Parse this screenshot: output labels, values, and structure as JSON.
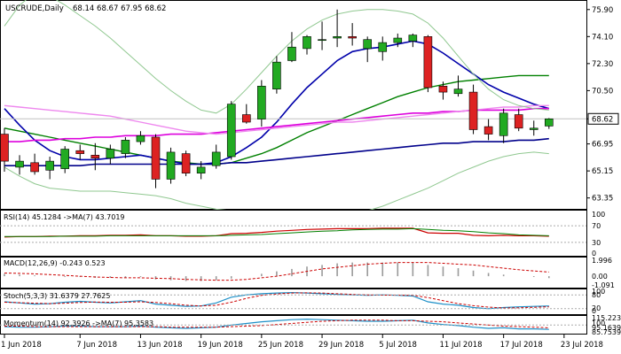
{
  "chart_data": {
    "type": "candlestick",
    "symbol_header": "USCRUDE,Daily",
    "ohlc_header": "68.14 68.67 67.95 68.62",
    "current_price": 68.62,
    "ylim": [
      62.8,
      76.3
    ],
    "y_ticks": [
      "75.90",
      "74.10",
      "72.30",
      "70.50",
      "68.62",
      "66.95",
      "65.15",
      "63.35"
    ],
    "x_ticks": [
      {
        "label": "1 Jun 2018",
        "i": 0
      },
      {
        "label": "7 Jun 2018",
        "i": 5
      },
      {
        "label": "13 Jun 2018",
        "i": 9
      },
      {
        "label": "19 Jun 2018",
        "i": 13
      },
      {
        "label": "25 Jun 2018",
        "i": 17
      },
      {
        "label": "29 Jun 2018",
        "i": 21
      },
      {
        "label": "5 Jul 2018",
        "i": 25
      },
      {
        "label": "11 Jul 2018",
        "i": 29
      },
      {
        "label": "17 Jul 2018",
        "i": 33
      },
      {
        "label": "23 Jul 2018",
        "i": 37
      }
    ],
    "candles": [
      {
        "o": 67.6,
        "h": 68.0,
        "l": 65.1,
        "c": 65.8
      },
      {
        "o": 65.4,
        "h": 66.2,
        "l": 64.9,
        "c": 65.8
      },
      {
        "o": 65.7,
        "h": 66.3,
        "l": 64.9,
        "c": 65.1
      },
      {
        "o": 65.2,
        "h": 66.1,
        "l": 64.6,
        "c": 65.8
      },
      {
        "o": 65.3,
        "h": 66.8,
        "l": 65.0,
        "c": 66.6
      },
      {
        "o": 66.5,
        "h": 66.9,
        "l": 65.9,
        "c": 66.3
      },
      {
        "o": 66.2,
        "h": 67.0,
        "l": 65.2,
        "c": 66.0
      },
      {
        "o": 66.0,
        "h": 66.9,
        "l": 65.6,
        "c": 66.6
      },
      {
        "o": 66.3,
        "h": 67.4,
        "l": 66.0,
        "c": 67.2
      },
      {
        "o": 67.1,
        "h": 67.8,
        "l": 66.9,
        "c": 67.5
      },
      {
        "o": 67.4,
        "h": 67.6,
        "l": 64.0,
        "c": 64.6
      },
      {
        "o": 64.6,
        "h": 66.7,
        "l": 64.3,
        "c": 66.4
      },
      {
        "o": 66.3,
        "h": 66.5,
        "l": 64.8,
        "c": 65.0
      },
      {
        "o": 65.0,
        "h": 65.8,
        "l": 64.6,
        "c": 65.4
      },
      {
        "o": 65.5,
        "h": 66.9,
        "l": 65.3,
        "c": 66.4
      },
      {
        "o": 66.1,
        "h": 69.8,
        "l": 65.9,
        "c": 69.6
      },
      {
        "o": 68.9,
        "h": 69.6,
        "l": 68.3,
        "c": 68.4
      },
      {
        "o": 68.6,
        "h": 71.2,
        "l": 68.1,
        "c": 70.8
      },
      {
        "o": 70.6,
        "h": 72.8,
        "l": 70.3,
        "c": 72.4
      },
      {
        "o": 72.5,
        "h": 74.4,
        "l": 72.4,
        "c": 73.4
      },
      {
        "o": 73.3,
        "h": 74.2,
        "l": 72.9,
        "c": 74.1
      },
      {
        "o": 73.9,
        "h": 75.1,
        "l": 73.2,
        "c": 73.9
      },
      {
        "o": 74.0,
        "h": 75.9,
        "l": 73.4,
        "c": 74.1
      },
      {
        "o": 74.1,
        "h": 75.0,
        "l": 73.5,
        "c": 74.0
      },
      {
        "o": 73.3,
        "h": 74.1,
        "l": 72.4,
        "c": 73.9
      },
      {
        "o": 73.1,
        "h": 74.1,
        "l": 72.5,
        "c": 73.7
      },
      {
        "o": 73.7,
        "h": 74.3,
        "l": 73.4,
        "c": 74.0
      },
      {
        "o": 73.8,
        "h": 74.3,
        "l": 73.4,
        "c": 74.2
      },
      {
        "o": 74.1,
        "h": 74.2,
        "l": 70.4,
        "c": 70.7
      },
      {
        "o": 70.8,
        "h": 71.1,
        "l": 69.9,
        "c": 70.4
      },
      {
        "o": 70.3,
        "h": 71.5,
        "l": 70.1,
        "c": 70.6
      },
      {
        "o": 70.4,
        "h": 70.9,
        "l": 67.6,
        "c": 67.9
      },
      {
        "o": 68.1,
        "h": 68.6,
        "l": 67.2,
        "c": 67.6
      },
      {
        "o": 67.5,
        "h": 69.3,
        "l": 67.0,
        "c": 69.0
      },
      {
        "o": 68.9,
        "h": 69.3,
        "l": 67.8,
        "c": 68.0
      },
      {
        "o": 67.9,
        "h": 68.5,
        "l": 67.5,
        "c": 68.0
      },
      {
        "o": 68.14,
        "h": 68.67,
        "l": 67.95,
        "c": 68.62
      }
    ],
    "overlays": [
      {
        "color": "#008000",
        "width": 1.4,
        "values": [
          68.0,
          67.8,
          67.6,
          67.4,
          67.2,
          67.0,
          66.8,
          66.6,
          66.4,
          66.2,
          66.0,
          65.8,
          65.7,
          65.6,
          65.6,
          65.7,
          66.0,
          66.3,
          66.7,
          67.2,
          67.7,
          68.1,
          68.5,
          68.9,
          69.3,
          69.7,
          70.1,
          70.4,
          70.7,
          70.9,
          71.1,
          71.2,
          71.3,
          71.4,
          71.5,
          71.5,
          71.5
        ]
      },
      {
        "color": "#0000aa",
        "width": 1.6,
        "values": [
          69.3,
          68.2,
          67.2,
          66.5,
          66.1,
          65.9,
          65.9,
          66.0,
          66.1,
          66.2,
          66.0,
          65.8,
          65.6,
          65.6,
          65.7,
          66.1,
          66.7,
          67.4,
          68.4,
          69.6,
          70.7,
          71.6,
          72.5,
          73.1,
          73.3,
          73.4,
          73.6,
          73.8,
          73.6,
          73.0,
          72.3,
          71.6,
          70.9,
          70.4,
          70.0,
          69.6,
          69.3
        ]
      },
      {
        "color": "#00008b",
        "width": 1.6,
        "values": [
          65.5,
          65.5,
          65.5,
          65.5,
          65.5,
          65.5,
          65.6,
          65.6,
          65.6,
          65.6,
          65.6,
          65.6,
          65.6,
          65.6,
          65.6,
          65.7,
          65.7,
          65.8,
          65.9,
          66.0,
          66.1,
          66.2,
          66.3,
          66.4,
          66.5,
          66.6,
          66.7,
          66.8,
          66.9,
          67.0,
          67.0,
          67.1,
          67.1,
          67.1,
          67.2,
          67.2,
          67.3
        ]
      },
      {
        "color": "#dd00dd",
        "width": 1.6,
        "values": [
          67.1,
          67.1,
          67.2,
          67.2,
          67.3,
          67.3,
          67.4,
          67.4,
          67.5,
          67.5,
          67.5,
          67.6,
          67.6,
          67.6,
          67.7,
          67.8,
          67.9,
          68.0,
          68.1,
          68.2,
          68.3,
          68.4,
          68.5,
          68.6,
          68.7,
          68.8,
          68.9,
          69.0,
          69.0,
          69.1,
          69.1,
          69.2,
          69.2,
          69.2,
          69.2,
          69.3,
          69.3
        ]
      },
      {
        "color": "#ee88ee",
        "width": 1.4,
        "values": [
          69.5,
          69.4,
          69.3,
          69.2,
          69.1,
          69.0,
          68.9,
          68.8,
          68.6,
          68.4,
          68.2,
          68.0,
          67.8,
          67.7,
          67.6,
          67.7,
          67.8,
          67.9,
          68.0,
          68.1,
          68.2,
          68.3,
          68.4,
          68.4,
          68.5,
          68.6,
          68.7,
          68.8,
          68.9,
          69.0,
          69.1,
          69.2,
          69.3,
          69.4,
          69.4,
          69.5,
          69.5
        ]
      },
      {
        "color": "#90c890",
        "width": 1.0,
        "values": [
          74.8,
          76.2,
          77.0,
          76.8,
          76.2,
          75.5,
          74.8,
          74.0,
          73.1,
          72.2,
          71.3,
          70.5,
          69.8,
          69.2,
          69.0,
          69.6,
          70.6,
          71.7,
          72.8,
          73.8,
          74.6,
          75.2,
          75.6,
          75.8,
          75.9,
          75.9,
          75.8,
          75.6,
          75.0,
          74.0,
          72.8,
          71.6,
          70.6,
          69.9,
          69.5,
          69.3,
          69.2
        ]
      },
      {
        "color": "#90c890",
        "width": 1.0,
        "values": [
          65.4,
          64.8,
          64.3,
          64.0,
          63.9,
          63.8,
          63.8,
          63.8,
          63.7,
          63.6,
          63.5,
          63.3,
          63.0,
          62.8,
          62.6,
          62.5,
          62.3,
          62.2,
          62.1,
          62.0,
          61.9,
          61.9,
          62.0,
          62.2,
          62.5,
          62.8,
          63.2,
          63.6,
          64.0,
          64.5,
          65.0,
          65.4,
          65.8,
          66.1,
          66.3,
          66.4,
          66.3
        ]
      }
    ],
    "rsi": {
      "label": "RSI(14) 45.1284 ->MA(7) 43.7019",
      "ticks": [
        "100",
        "70",
        "30",
        "0"
      ],
      "values": [
        43,
        44,
        44,
        45,
        45,
        46,
        46,
        47,
        47,
        48,
        46,
        46,
        45,
        45,
        46,
        51,
        52,
        54,
        57,
        59,
        61,
        62,
        63,
        63,
        63,
        64,
        64,
        64,
        53,
        52,
        52,
        47,
        46,
        47,
        46,
        46,
        45
      ],
      "ma": [
        44,
        44,
        44,
        44,
        45,
        45,
        45,
        46,
        46,
        46,
        46,
        46,
        46,
        46,
        46,
        47,
        48,
        49,
        51,
        53,
        55,
        57,
        58,
        60,
        61,
        62,
        62,
        63,
        61,
        59,
        58,
        56,
        53,
        51,
        48,
        47,
        46
      ]
    },
    "macd": {
      "label": "MACD(12,26,9) -0.243 0.523",
      "ticks": [
        "1.996",
        "0.00",
        "-1.091"
      ],
      "hist": [
        0.3,
        0.2,
        0.1,
        0.0,
        -0.1,
        -0.1,
        -0.2,
        -0.2,
        -0.2,
        -0.1,
        -0.4,
        -0.5,
        -0.6,
        -0.6,
        -0.5,
        -0.3,
        0.0,
        0.3,
        0.6,
        0.9,
        1.2,
        1.4,
        1.6,
        1.7,
        1.7,
        1.7,
        1.7,
        1.7,
        1.4,
        1.2,
        1.0,
        0.7,
        0.4,
        0.2,
        0.0,
        -0.1,
        -0.24
      ],
      "signal": [
        0.4,
        0.35,
        0.3,
        0.2,
        0.1,
        0.0,
        -0.1,
        -0.15,
        -0.2,
        -0.2,
        -0.25,
        -0.3,
        -0.4,
        -0.45,
        -0.5,
        -0.5,
        -0.4,
        -0.2,
        0.0,
        0.3,
        0.6,
        0.9,
        1.1,
        1.3,
        1.5,
        1.6,
        1.7,
        1.7,
        1.7,
        1.6,
        1.5,
        1.4,
        1.2,
        1.0,
        0.8,
        0.65,
        0.52
      ]
    },
    "stoch": {
      "label": "Stoch(5,3,3) 31.6379 27.7625",
      "ticks": [
        "100",
        "80",
        "20",
        "0"
      ],
      "k": [
        50,
        45,
        40,
        42,
        48,
        52,
        48,
        45,
        50,
        55,
        40,
        35,
        30,
        32,
        45,
        70,
        80,
        85,
        88,
        90,
        88,
        85,
        82,
        80,
        78,
        80,
        78,
        75,
        50,
        40,
        35,
        25,
        20,
        25,
        28,
        30,
        32
      ],
      "d": [
        48,
        46,
        44,
        42,
        44,
        47,
        49,
        48,
        48,
        50,
        47,
        42,
        35,
        32,
        35,
        48,
        65,
        78,
        84,
        88,
        89,
        88,
        85,
        82,
        80,
        79,
        79,
        78,
        68,
        55,
        42,
        33,
        27,
        23,
        24,
        26,
        28
      ]
    },
    "momentum": {
      "label": "Momentum(14) 92.3926 ->MA(7) 95.3583",
      "ticks": [
        "115.2230",
        "100",
        "95.1639",
        "85.7539"
      ],
      "values": [
        97,
        96,
        96,
        97,
        98,
        98,
        97,
        97,
        97,
        98,
        96,
        95,
        94,
        95,
        96,
        100,
        103,
        106,
        108,
        110,
        111,
        110,
        109,
        108,
        107,
        107,
        108,
        109,
        104,
        101,
        99,
        96,
        94,
        95,
        93,
        93,
        92
      ],
      "ma": [
        98,
        98,
        97,
        97,
        97,
        97,
        97,
        97,
        97,
        97,
        97,
        96,
        96,
        96,
        96,
        97,
        98,
        99,
        101,
        103,
        105,
        107,
        108,
        109,
        109,
        109,
        108,
        108,
        107,
        106,
        104,
        102,
        100,
        98,
        97,
        96,
        95
      ]
    }
  }
}
